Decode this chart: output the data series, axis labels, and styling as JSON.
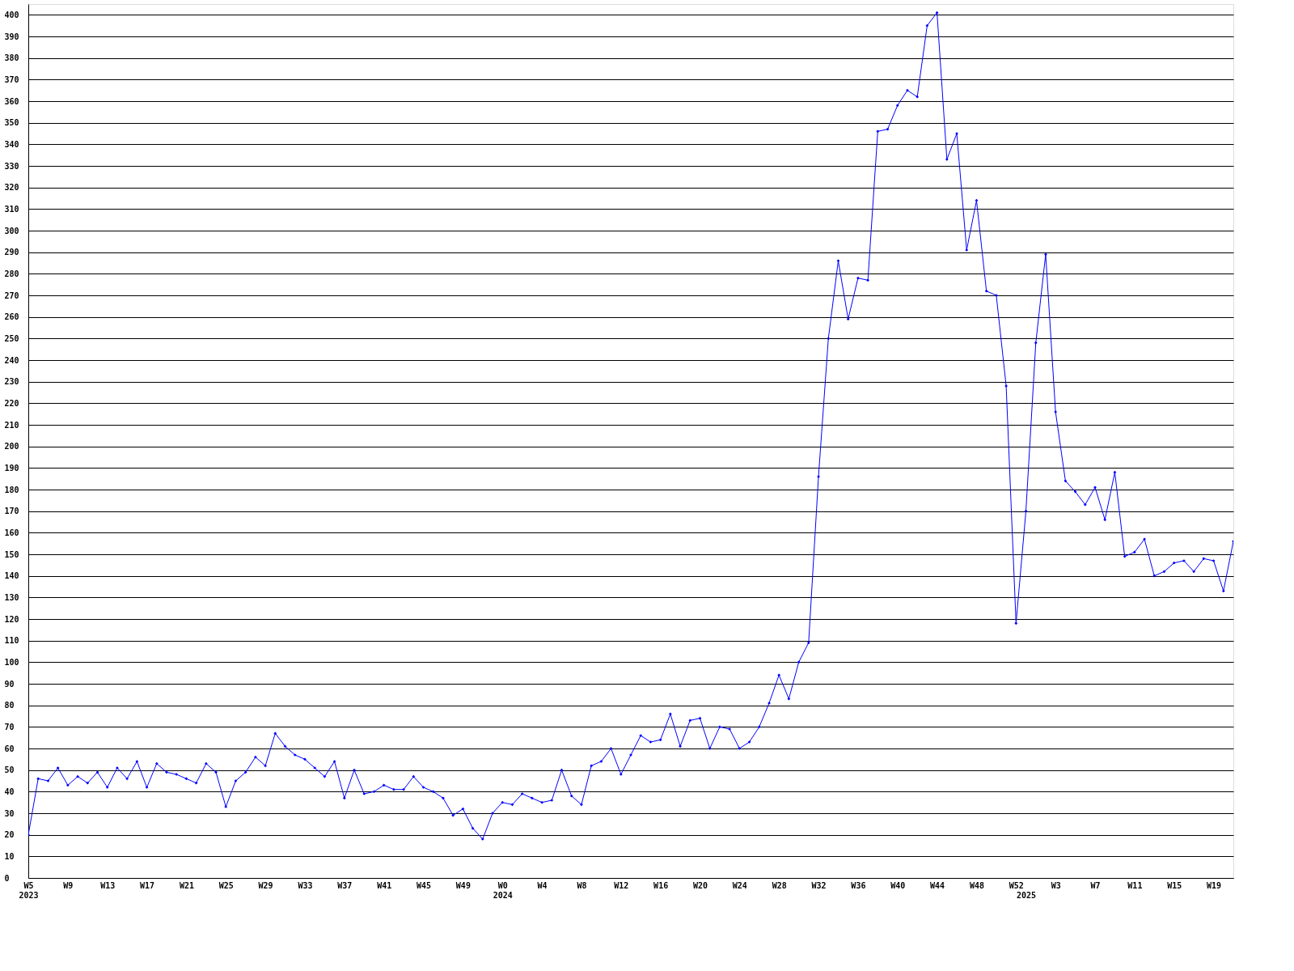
{
  "chart_data": {
    "type": "line",
    "categories": [
      "W5\n2023",
      null,
      null,
      null,
      "W9",
      null,
      null,
      null,
      "W13",
      null,
      null,
      null,
      "W17",
      null,
      null,
      null,
      "W21",
      null,
      null,
      null,
      "W25",
      null,
      null,
      null,
      "W29",
      null,
      null,
      null,
      "W33",
      null,
      null,
      null,
      "W37",
      null,
      null,
      null,
      "W41",
      null,
      null,
      null,
      "W45",
      null,
      null,
      null,
      "W49",
      null,
      null,
      null,
      "W0\n2024",
      null,
      null,
      null,
      "W4",
      null,
      null,
      null,
      "W8",
      null,
      null,
      null,
      "W12",
      null,
      null,
      null,
      "W16",
      null,
      null,
      null,
      "W20",
      null,
      null,
      null,
      "W24",
      null,
      null,
      null,
      "W28",
      null,
      null,
      null,
      "W32",
      null,
      null,
      null,
      "W36",
      null,
      null,
      null,
      "W40",
      null,
      null,
      null,
      "W44",
      null,
      null,
      null,
      "W48",
      null,
      null,
      null,
      "W52",
      "\n2025",
      null,
      null,
      "W3",
      null,
      null,
      null,
      "W7",
      null,
      null,
      null,
      "W11",
      null,
      null,
      null,
      "W15",
      null,
      null,
      null,
      "W19",
      null,
      null
    ],
    "series": [
      {
        "color": "#0000ff",
        "values": [
          20,
          46,
          45,
          51,
          43,
          47,
          44,
          49,
          42,
          51,
          46,
          54,
          42,
          53,
          49,
          48,
          46,
          44,
          53,
          49,
          33,
          45,
          49,
          56,
          52,
          67,
          61,
          57,
          55,
          51,
          47,
          54,
          37,
          50,
          39,
          40,
          43,
          41,
          41,
          47,
          42,
          40,
          37,
          29,
          32,
          23,
          18,
          30,
          35,
          34,
          39,
          37,
          35,
          36,
          50,
          38,
          34,
          52,
          54,
          60,
          48,
          57,
          66,
          63,
          64,
          76,
          61,
          73,
          74,
          60,
          70,
          69,
          60,
          63,
          70,
          81,
          94,
          83,
          100,
          109,
          186,
          250,
          286,
          259,
          278,
          277,
          346,
          347,
          358,
          365,
          362,
          395,
          401,
          333,
          345,
          291,
          314,
          272,
          270,
          228,
          118,
          170,
          248,
          289,
          216,
          184,
          179,
          173,
          181,
          166,
          188,
          149,
          151,
          157,
          140,
          142,
          146,
          147,
          142,
          148,
          147,
          133,
          156
        ]
      }
    ],
    "ylim": [
      0,
      405
    ],
    "yticks": [
      0,
      10,
      20,
      30,
      40,
      50,
      60,
      70,
      80,
      90,
      100,
      110,
      120,
      130,
      140,
      150,
      160,
      170,
      180,
      190,
      200,
      210,
      220,
      230,
      240,
      250,
      260,
      270,
      280,
      290,
      300,
      310,
      320,
      330,
      340,
      350,
      360,
      370,
      380,
      390,
      400
    ],
    "grid": "y",
    "marker": "diamond",
    "line_style": "solid"
  }
}
